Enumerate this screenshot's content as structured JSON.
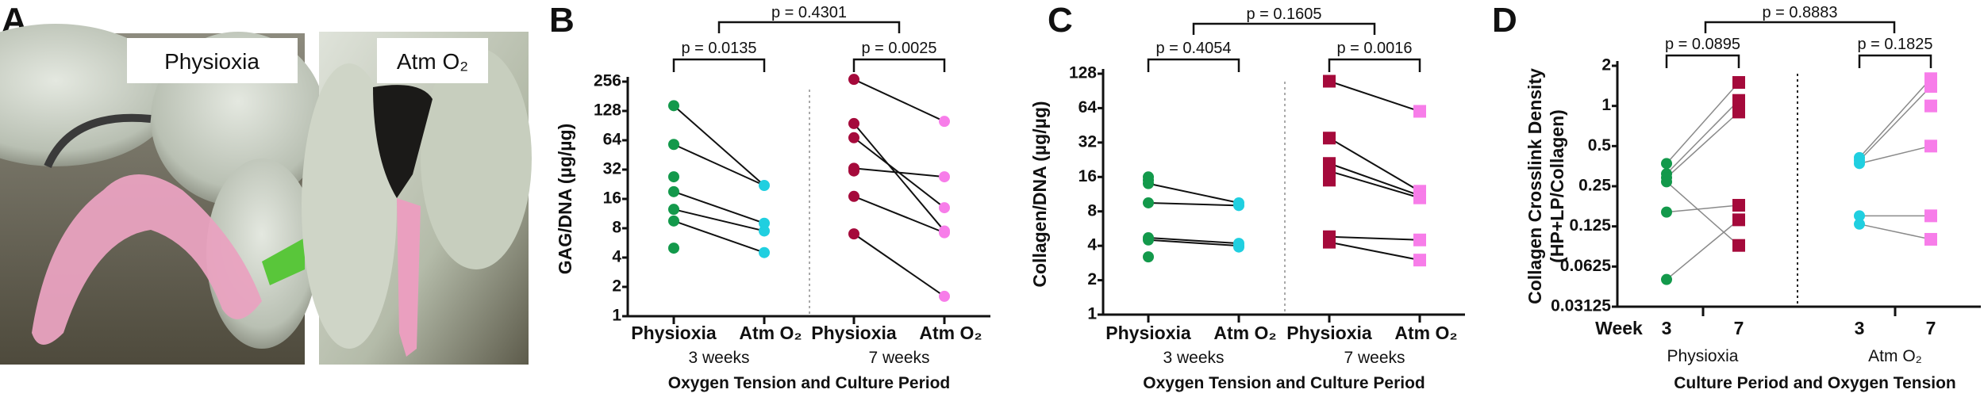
{
  "panel_a": {
    "letter": "A",
    "photos": [
      {
        "label": "Physioxia"
      },
      {
        "label": "Atm O₂"
      }
    ]
  },
  "chart_data": [
    {
      "letter": "B",
      "type": "scatter",
      "ylabel": "GAG/DNA (µg/µg)",
      "xlabel": "Oxygen Tension and Culture Period",
      "yscale": "log2",
      "ylim": [
        1,
        256
      ],
      "yticks": [
        "1",
        "2",
        "4",
        "8",
        "16",
        "32",
        "64",
        "128",
        "256"
      ],
      "blocks": [
        {
          "period": "3 weeks",
          "categories": [
            "Physioxia",
            "Atm O₂"
          ],
          "p_value": "p = 0.0135",
          "groups": [
            {
              "name": "Physioxia",
              "color": "#13994b",
              "marker": "circle",
              "values": [
                145,
                58,
                27,
                19,
                12.5,
                9.5,
                5
              ]
            },
            {
              "name": "Atm O₂",
              "color": "#20cfe0",
              "marker": "circle",
              "values": [
                22,
                9,
                7.5,
                4.5
              ]
            }
          ],
          "pairs": [
            [
              0,
              0
            ],
            [
              1,
              0
            ],
            [
              3,
              1
            ],
            [
              4,
              2
            ],
            [
              5,
              3
            ]
          ]
        },
        {
          "period": "7 weeks",
          "categories": [
            "Physioxia",
            "Atm O₂"
          ],
          "p_value": "p = 0.0025",
          "groups": [
            {
              "name": "Physioxia",
              "color": "#a50a3b",
              "marker": "circle",
              "values": [
                270,
                95,
                68,
                33,
                31,
                17,
                7
              ]
            },
            {
              "name": "Atm O₂",
              "color": "#f77de9",
              "marker": "circle",
              "values": [
                100,
                27,
                13,
                7.5,
                7.2,
                1.6
              ]
            }
          ],
          "pairs": [
            [
              0,
              0
            ],
            [
              1,
              3
            ],
            [
              2,
              2
            ],
            [
              3,
              1
            ],
            [
              5,
              4
            ],
            [
              6,
              5
            ]
          ]
        }
      ],
      "p_between": "p = 0.4301",
      "line_color": "#111111"
    },
    {
      "letter": "C",
      "type": "scatter",
      "ylabel": "Collagen/DNA (µg/µg)",
      "xlabel": "Oxygen Tension and Culture Period",
      "yscale": "log2",
      "ylim": [
        1,
        128
      ],
      "yticks": [
        "1",
        "2",
        "4",
        "8",
        "16",
        "32",
        "64",
        "128"
      ],
      "blocks": [
        {
          "period": "3 weeks",
          "categories": [
            "Physioxia",
            "Atm O₂"
          ],
          "p_value": "p = 0.4054",
          "groups": [
            {
              "name": "Physioxia",
              "color": "#13994b",
              "marker": "circle",
              "values": [
                16,
                15,
                14,
                9.5,
                4.7,
                4.5,
                3.2
              ]
            },
            {
              "name": "Atm O₂",
              "color": "#20cfe0",
              "marker": "circle",
              "values": [
                9.5,
                9,
                4.2,
                4.0,
                3.9
              ]
            }
          ],
          "pairs": [
            [
              2,
              0
            ],
            [
              3,
              1
            ],
            [
              4,
              2
            ],
            [
              5,
              3
            ]
          ]
        },
        {
          "period": "7 weeks",
          "categories": [
            "Physioxia",
            "Atm O₂"
          ],
          "p_value": "p = 0.0016",
          "groups": [
            {
              "name": "Physioxia",
              "color": "#a50a3b",
              "marker": "square",
              "values": [
                110,
                35,
                21,
                18,
                15,
                4.8,
                4.3
              ]
            },
            {
              "name": "Atm O₂",
              "color": "#f77de9",
              "marker": "square",
              "values": [
                60,
                12,
                11,
                10.5,
                4.5,
                3
              ]
            }
          ],
          "pairs": [
            [
              0,
              0
            ],
            [
              1,
              1
            ],
            [
              2,
              2
            ],
            [
              3,
              3
            ],
            [
              5,
              4
            ],
            [
              6,
              5
            ]
          ]
        }
      ],
      "p_between": "p = 0.1605",
      "line_color": "#111111"
    },
    {
      "letter": "D",
      "type": "scatter",
      "ylabel": "Collagen Crosslink Density",
      "ylabel2": "(HP+LP/Collagen)",
      "xlabel": "Culture Period and Oxygen Tension",
      "x_prefix": "Week",
      "yscale": "log2",
      "ylim": [
        0.03125,
        2
      ],
      "yticks": [
        "0.03125",
        "0.0625",
        "0.125",
        "0.25",
        "0.5",
        "1",
        "2"
      ],
      "blocks": [
        {
          "period": "Physioxia",
          "categories": [
            "3",
            "7"
          ],
          "p_value": "p = 0.0895",
          "groups": [
            {
              "name": "Week 3",
              "color": "#13994b",
              "marker": "circle",
              "values": [
                0.37,
                0.31,
                0.29,
                0.27,
                0.16,
                0.05
              ]
            },
            {
              "name": "Week 7",
              "color": "#a50a3b",
              "marker": "square",
              "values": [
                1.5,
                1.1,
                0.9,
                0.18,
                0.14,
                0.09
              ]
            }
          ],
          "pairs": [
            [
              0,
              0
            ],
            [
              1,
              1
            ],
            [
              2,
              2
            ],
            [
              3,
              5
            ],
            [
              4,
              3
            ],
            [
              5,
              4
            ]
          ]
        },
        {
          "period": "Atm O₂",
          "categories": [
            "3",
            "7"
          ],
          "p_value": "p = 0.1825",
          "groups": [
            {
              "name": "Week 3",
              "color": "#20cfe0",
              "marker": "circle",
              "values": [
                0.41,
                0.39,
                0.37,
                0.15,
                0.13
              ]
            },
            {
              "name": "Week 7",
              "color": "#f77de9",
              "marker": "square",
              "values": [
                1.6,
                1.4,
                1.0,
                0.5,
                0.15,
                0.1
              ]
            }
          ],
          "pairs": [
            [
              0,
              0
            ],
            [
              1,
              1
            ],
            [
              2,
              3
            ],
            [
              3,
              4
            ],
            [
              4,
              5
            ]
          ]
        }
      ],
      "p_between": "p = 0.8883",
      "line_color": "#8a8a8a"
    }
  ]
}
